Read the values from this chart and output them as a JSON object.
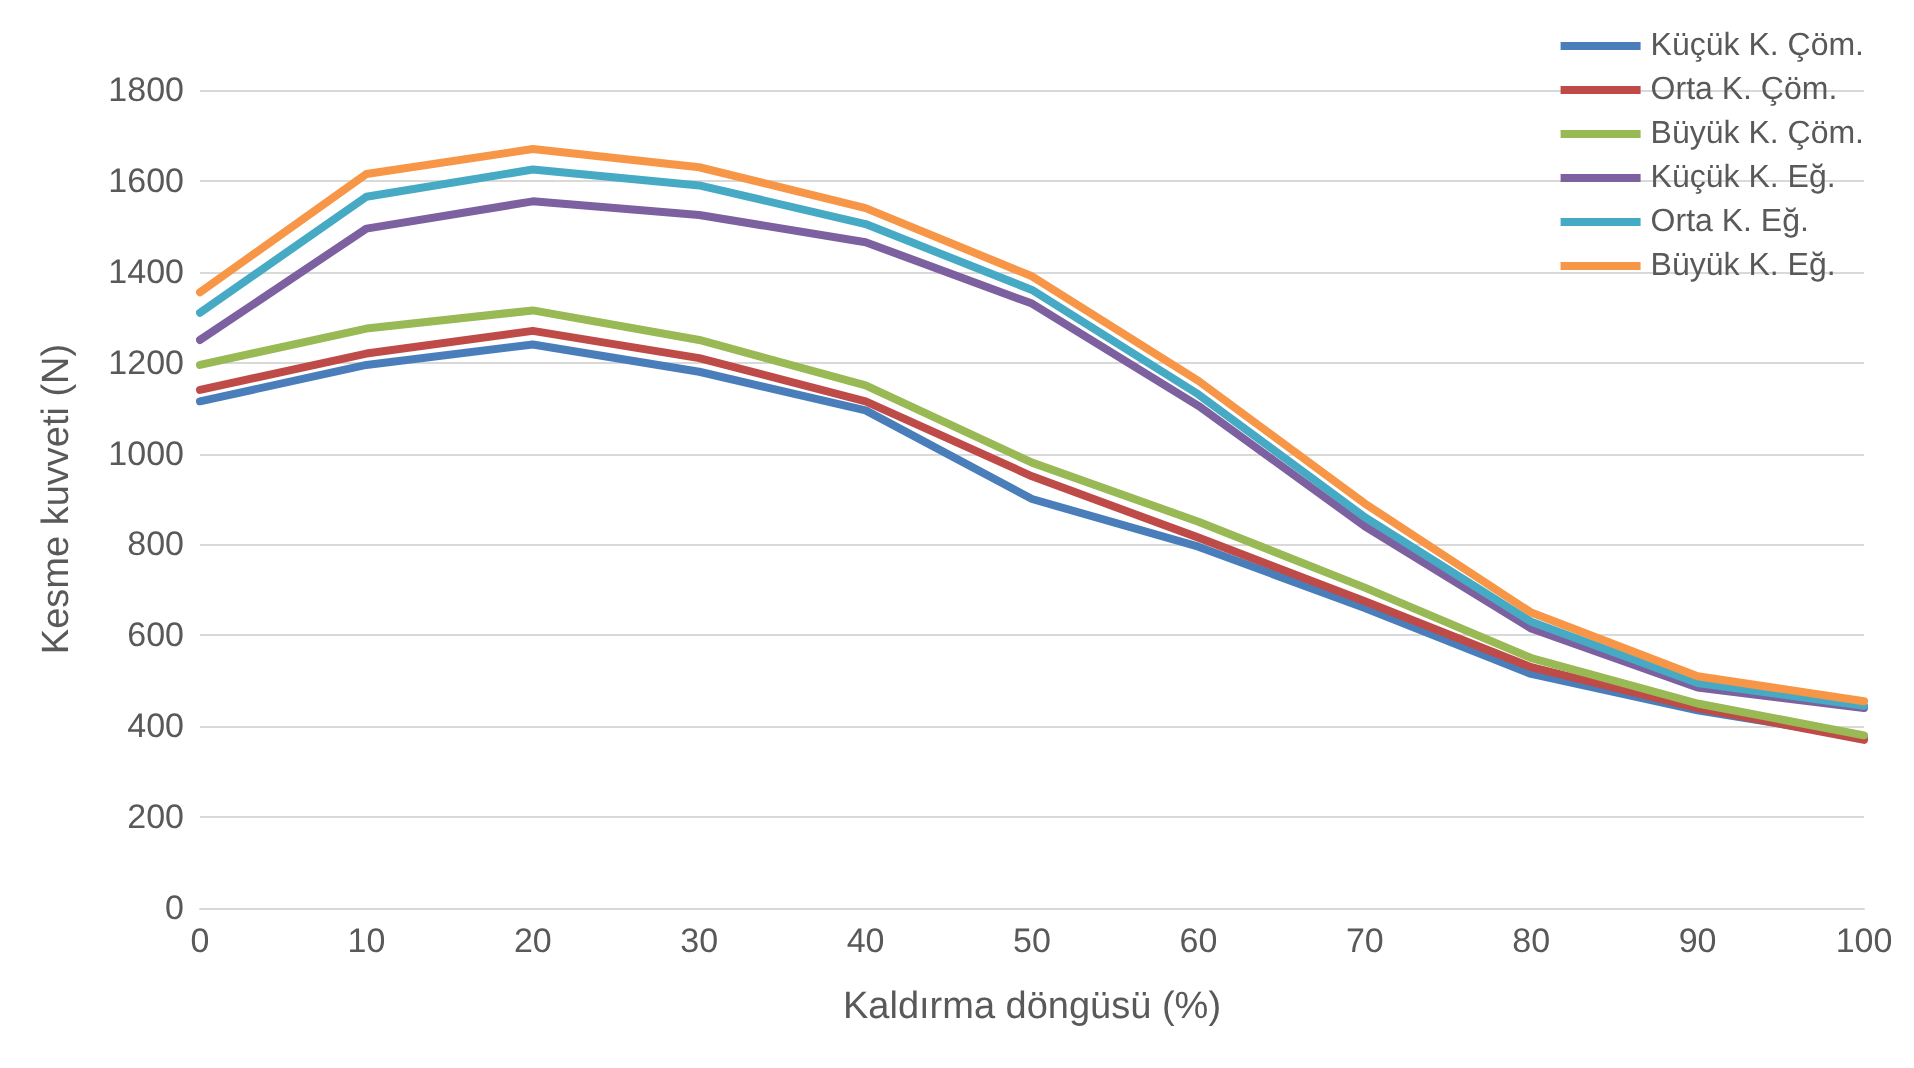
{
  "chart_data": {
    "type": "line",
    "xlabel": "Kaldırma döngüsü (%)",
    "ylabel": "Kesme kuvveti (N)",
    "x": [
      0,
      10,
      20,
      30,
      40,
      50,
      60,
      70,
      80,
      90,
      100
    ],
    "xlim": [
      0,
      100
    ],
    "xticks": [
      0,
      10,
      20,
      30,
      40,
      50,
      60,
      70,
      80,
      90,
      100
    ],
    "ylim": [
      0,
      1800
    ],
    "yticks": [
      0,
      200,
      400,
      600,
      800,
      1000,
      1200,
      1400,
      1600,
      1800
    ],
    "grid": "y",
    "legend": "top right",
    "marker": "none",
    "line_style": "solid",
    "series": [
      {
        "name": "Küçük K. Çöm.",
        "color": "#4a7ebb",
        "values": [
          1115,
          1195,
          1240,
          1180,
          1095,
          900,
          795,
          660,
          515,
          435,
          375
        ]
      },
      {
        "name": "Orta K. Çöm.",
        "color": "#be4b48",
        "values": [
          1140,
          1220,
          1270,
          1210,
          1115,
          950,
          815,
          675,
          530,
          440,
          370
        ]
      },
      {
        "name": "Büyük K. Çöm.",
        "color": "#98b954",
        "values": [
          1195,
          1275,
          1315,
          1250,
          1150,
          980,
          850,
          705,
          550,
          450,
          380
        ]
      },
      {
        "name": "Küçük K. Eğ.",
        "color": "#7d60a0",
        "values": [
          1250,
          1495,
          1555,
          1525,
          1465,
          1330,
          1105,
          840,
          615,
          485,
          440
        ]
      },
      {
        "name": "Orta K. Eğ.",
        "color": "#46aac5",
        "values": [
          1310,
          1565,
          1625,
          1590,
          1505,
          1360,
          1130,
          860,
          630,
          495,
          445
        ]
      },
      {
        "name": "Büyük K. Eğ.",
        "color": "#f79646",
        "values": [
          1355,
          1615,
          1670,
          1630,
          1540,
          1390,
          1160,
          890,
          650,
          510,
          455
        ]
      }
    ]
  }
}
